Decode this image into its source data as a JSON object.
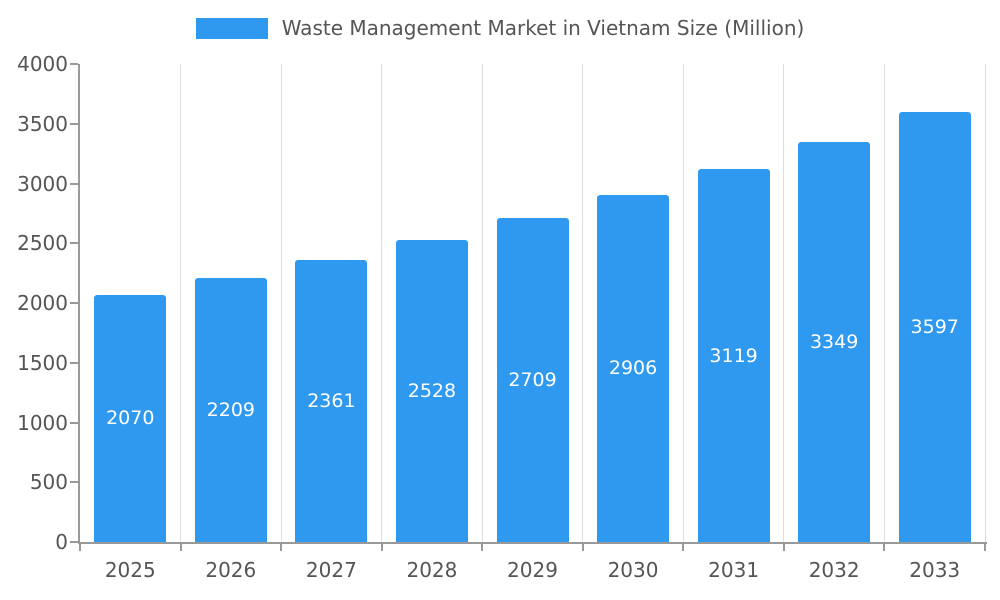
{
  "legend": {
    "title": "Waste Management Market in Vietnam Size (Million)",
    "swatch_color": "#2f98ef"
  },
  "chart_data": {
    "type": "bar",
    "title": "Waste Management Market in Vietnam Size (Million)",
    "categories": [
      "2025",
      "2026",
      "2027",
      "2028",
      "2029",
      "2030",
      "2031",
      "2032",
      "2033"
    ],
    "values": [
      2070,
      2209,
      2361,
      2528,
      2709,
      2906,
      3119,
      3349,
      3597
    ],
    "series": [
      {
        "name": "Waste Management Market in Vietnam Size (Million)",
        "values": [
          2070,
          2209,
          2361,
          2528,
          2709,
          2906,
          3119,
          3349,
          3597
        ]
      }
    ],
    "xlabel": "",
    "ylabel": "",
    "ylim": [
      0,
      4000
    ],
    "yticks": [
      0,
      500,
      1000,
      1500,
      2000,
      2500,
      3000,
      3500,
      4000
    ],
    "grid": "vertical-only",
    "legend_position": "top-center",
    "bar_color": "#2f98ef",
    "bar_label_color": "#ffffff",
    "axis_color": "#999999",
    "gridline_color": "#dddddd",
    "text_color": "#555555"
  }
}
